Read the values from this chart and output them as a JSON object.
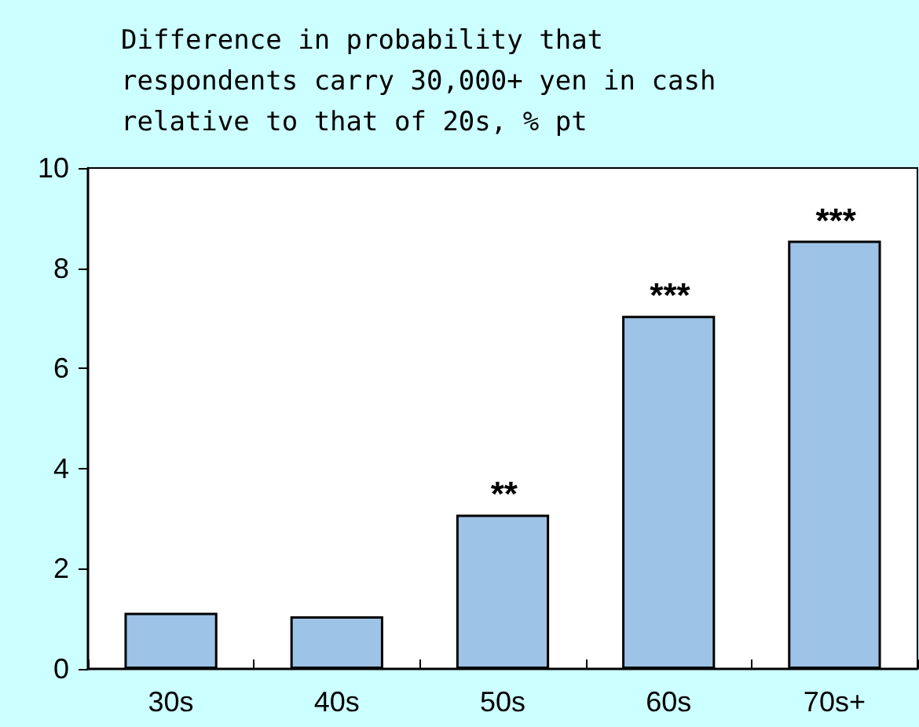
{
  "chart_data": {
    "type": "bar",
    "title": "Difference in probability that\nrespondents carry 30,000+ yen in cash\nrelative to that of 20s, % pt",
    "categories": [
      "30s",
      "40s",
      "50s",
      "60s",
      "70s+"
    ],
    "values": [
      1.12,
      1.05,
      3.08,
      7.05,
      8.55
    ],
    "color": "#9dc3e6",
    "ylim": [
      0,
      10
    ],
    "yticks": [
      0,
      2,
      4,
      6,
      8,
      10
    ],
    "grid": false,
    "annotations": [
      {
        "text": "**",
        "x": "50s",
        "y": 3.08
      },
      {
        "text": "***",
        "x": "60s",
        "y": 7.05
      },
      {
        "text": "***",
        "x": "70s+",
        "y": 8.55
      }
    ]
  }
}
